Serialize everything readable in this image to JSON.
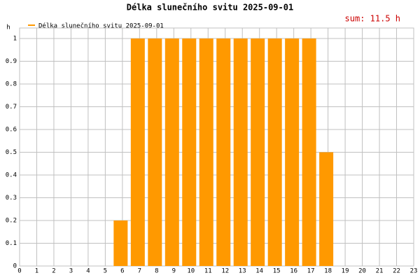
{
  "chart_data": {
    "type": "bar",
    "title": "Délka slunečního svitu 2025-09-01",
    "legend_label": "Délka slunečního svitu 2025-09-01",
    "annotation": "sum: 11.5 h",
    "y_label": "h",
    "x": [
      0,
      1,
      2,
      3,
      4,
      5,
      6,
      7,
      8,
      9,
      10,
      11,
      12,
      13,
      14,
      15,
      16,
      17,
      18,
      19,
      20,
      21,
      22,
      23
    ],
    "values": [
      0,
      0,
      0,
      0,
      0,
      0,
      0.2,
      1,
      1,
      1,
      1,
      1,
      1,
      1,
      1,
      1,
      1,
      1,
      0.5,
      0,
      0,
      0,
      0,
      0
    ],
    "color": "#ff9900",
    "xlim": [
      0,
      23
    ],
    "xticks": [
      0,
      1,
      2,
      3,
      4,
      5,
      6,
      7,
      8,
      9,
      10,
      11,
      12,
      13,
      14,
      15,
      16,
      17,
      18,
      19,
      20,
      21,
      22,
      23
    ],
    "ylim": [
      0,
      1
    ],
    "yticks": [
      0,
      0.1,
      0.2,
      0.3,
      0.4,
      0.5,
      0.6,
      0.7,
      0.8,
      0.9,
      1
    ],
    "grid": true
  }
}
